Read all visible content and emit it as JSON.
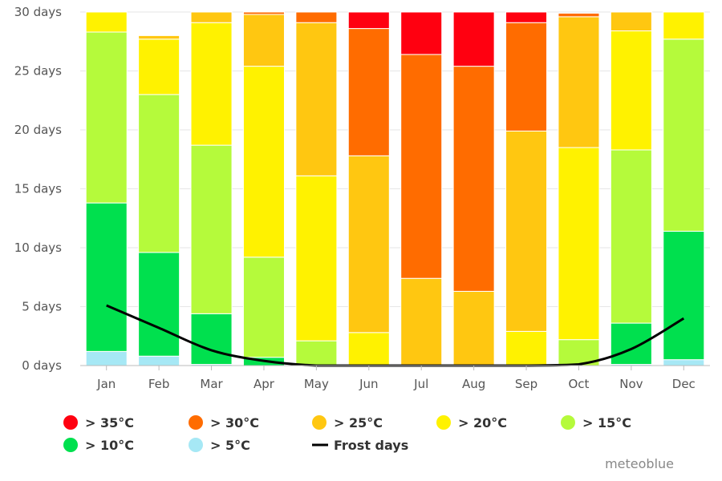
{
  "chart_data": {
    "type": "bar",
    "stacked": true,
    "categories": [
      "Jan",
      "Feb",
      "Mar",
      "Apr",
      "May",
      "Jun",
      "Jul",
      "Aug",
      "Sep",
      "Oct",
      "Nov",
      "Dec"
    ],
    "ylim": [
      0,
      30
    ],
    "yticks": [
      0,
      5,
      10,
      15,
      20,
      25,
      30
    ],
    "ytick_labels": [
      "0 days",
      "5 days",
      "10 days",
      "15 days",
      "20 days",
      "25 days",
      "30 days"
    ],
    "grid": true,
    "legend_placement": "bottom",
    "series": [
      {
        "name": "> 5°C",
        "color": "#a6e8f5",
        "values": [
          1.2,
          0.8,
          0.1,
          0.0,
          0.0,
          0.0,
          0.0,
          0.0,
          0.0,
          0.0,
          0.1,
          0.5
        ]
      },
      {
        "name": "> 10°C",
        "color": "#00e04e",
        "values": [
          12.6,
          8.8,
          4.3,
          0.7,
          0.0,
          0.0,
          0.0,
          0.0,
          0.0,
          0.0,
          3.5,
          10.9
        ]
      },
      {
        "name": "> 15°C",
        "color": "#b5fa3b",
        "values": [
          14.5,
          13.4,
          14.3,
          8.5,
          2.1,
          0.0,
          0.0,
          0.0,
          0.0,
          2.2,
          14.7,
          16.3
        ]
      },
      {
        "name": "> 20°C",
        "color": "#fff200",
        "values": [
          1.7,
          4.7,
          10.4,
          16.2,
          14.0,
          2.8,
          0.0,
          0.0,
          2.9,
          16.3,
          10.1,
          2.3
        ]
      },
      {
        "name": "> 25°C",
        "color": "#ffc711",
        "values": [
          0.0,
          0.3,
          0.9,
          4.4,
          13.0,
          15.0,
          7.4,
          6.3,
          17.0,
          11.1,
          1.6,
          0.0
        ]
      },
      {
        "name": "> 30°C",
        "color": "#ff6c00",
        "values": [
          0.0,
          0.0,
          0.0,
          0.2,
          0.9,
          10.8,
          19.0,
          19.1,
          9.2,
          0.3,
          0.0,
          0.0
        ]
      },
      {
        "name": "> 35°C",
        "color": "#ff0010",
        "values": [
          0.0,
          0.0,
          0.0,
          0.0,
          0.0,
          1.4,
          3.6,
          4.6,
          0.9,
          0.0,
          0.0,
          0.0
        ]
      }
    ],
    "line": {
      "name": "Frost days",
      "color": "#000000",
      "values": [
        5.1,
        3.2,
        1.3,
        0.4,
        0.0,
        0.0,
        0.0,
        0.0,
        0.0,
        0.1,
        1.4,
        4.0
      ]
    },
    "legend_order": [
      "> 35°C",
      "> 30°C",
      "> 25°C",
      "> 20°C",
      "> 15°C",
      "> 10°C",
      "> 5°C",
      "Frost days"
    ]
  },
  "credit": "meteoblue"
}
